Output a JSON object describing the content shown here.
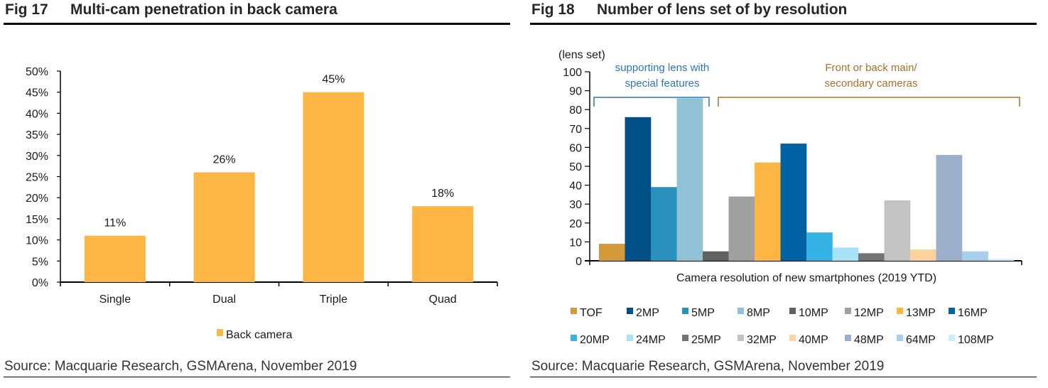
{
  "figures": [
    {
      "number": "Fig 17",
      "title": "Multi-cam penetration in back camera",
      "source": "Source: Macquarie Research, GSMArena, November 2019"
    },
    {
      "number": "Fig 18",
      "title": "Number of lens set of by resolution",
      "source": "Source: Macquarie Research, GSMArena, November 2019"
    }
  ],
  "chart_data": [
    {
      "type": "bar",
      "title": "Multi-cam penetration in back camera",
      "categories": [
        "Single",
        "Dual",
        "Triple",
        "Quad"
      ],
      "series": [
        {
          "name": "Back camera",
          "color": "#FDB643",
          "values": [
            11,
            26,
            45,
            18
          ],
          "labels": [
            "11%",
            "26%",
            "45%",
            "18%"
          ]
        }
      ],
      "xlabel": "",
      "ylabel": "",
      "ylim": [
        0,
        50
      ],
      "yticks": [
        0,
        5,
        10,
        15,
        20,
        25,
        30,
        35,
        40,
        45,
        50
      ],
      "ytick_labels": [
        "0%",
        "5%",
        "10%",
        "15%",
        "20%",
        "25%",
        "30%",
        "35%",
        "40%",
        "45%",
        "50%"
      ],
      "grid": false,
      "legend": "bottom"
    },
    {
      "type": "bar",
      "title": "Number of lens set of by resolution",
      "categories": [
        "TOF",
        "2MP",
        "5MP",
        "8MP",
        "10MP",
        "12MP",
        "13MP",
        "16MP",
        "20MP",
        "24MP",
        "25MP",
        "32MP",
        "40MP",
        "48MP",
        "64MP",
        "108MP"
      ],
      "series": [
        {
          "name": "TOF",
          "color": "#D49A3A",
          "value": 9
        },
        {
          "name": "2MP",
          "color": "#004F86",
          "value": 76
        },
        {
          "name": "5MP",
          "color": "#2A90BE",
          "value": 39
        },
        {
          "name": "8MP",
          "color": "#90C1D4",
          "value": 86
        },
        {
          "name": "10MP",
          "color": "#616161",
          "value": 5
        },
        {
          "name": "12MP",
          "color": "#A0A0A0",
          "value": 34
        },
        {
          "name": "13MP",
          "color": "#FDB643",
          "value": 52
        },
        {
          "name": "16MP",
          "color": "#0062A3",
          "value": 62
        },
        {
          "name": "20MP",
          "color": "#33B2E3",
          "value": 15
        },
        {
          "name": "24MP",
          "color": "#A8E2F7",
          "value": 7
        },
        {
          "name": "25MP",
          "color": "#737373",
          "value": 4
        },
        {
          "name": "32MP",
          "color": "#C3C3C3",
          "value": 32
        },
        {
          "name": "40MP",
          "color": "#FDD29F",
          "value": 6
        },
        {
          "name": "48MP",
          "color": "#9DAFCB",
          "value": 56
        },
        {
          "name": "64MP",
          "color": "#A6CFEE",
          "value": 5
        },
        {
          "name": "108MP",
          "color": "#CDEFFA",
          "value": 1
        }
      ],
      "xlabel": "Camera resolution of new smartphones (2019 YTD)",
      "ylabel": "(lens set)",
      "ylim": [
        0,
        100
      ],
      "yticks": [
        0,
        10,
        20,
        30,
        40,
        50,
        60,
        70,
        80,
        90,
        100
      ],
      "grid": false,
      "legend": "bottom",
      "annotations": [
        {
          "text_lines": [
            "supporting  lens with",
            "special  features"
          ],
          "color": "#2E75B6",
          "spans": [
            "TOF",
            "8MP"
          ]
        },
        {
          "text_lines": [
            "Front or back main/",
            "secondary  cameras"
          ],
          "color": "#A8702A",
          "spans": [
            "10MP",
            "108MP"
          ]
        }
      ]
    }
  ]
}
